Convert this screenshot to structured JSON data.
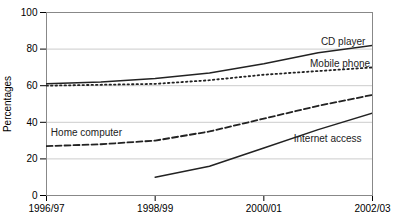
{
  "chart_data": {
    "type": "line",
    "ylabel": "Percentages",
    "x": [
      0,
      1,
      2,
      3,
      4,
      5,
      6
    ],
    "xlim": [
      0,
      6
    ],
    "xticks": [
      {
        "value": 0,
        "label": "1996/97"
      },
      {
        "value": 2,
        "label": "1998/99"
      },
      {
        "value": 4,
        "label": "2000/01"
      },
      {
        "value": 6,
        "label": "2002/03"
      }
    ],
    "ylim": [
      0,
      100
    ],
    "yticks": [
      0,
      20,
      40,
      60,
      80,
      100
    ],
    "grid": true,
    "series": [
      {
        "name": "CD player",
        "color": "#222222",
        "line_style": "solid",
        "values": [
          61,
          62,
          64,
          67,
          72,
          78,
          82
        ]
      },
      {
        "name": "Mobile phone",
        "color": "#222222",
        "line_style": "dotted",
        "values": [
          60,
          60.5,
          61,
          63,
          66,
          68,
          70
        ]
      },
      {
        "name": "Home computer",
        "color": "#222222",
        "line_style": "dashed",
        "values": [
          27,
          28,
          30,
          35,
          42,
          49,
          55
        ]
      },
      {
        "name": "Internet access",
        "color": "#222222",
        "line_style": "solid",
        "values": [
          null,
          null,
          10,
          16,
          26,
          36,
          45
        ]
      }
    ],
    "annotations": [
      {
        "text": "CD player",
        "x": 5.05,
        "y": 84
      },
      {
        "text": "Mobile phone",
        "x": 4.85,
        "y": 72
      },
      {
        "text": "Internet access",
        "x": 4.55,
        "y": 31
      },
      {
        "text": "Home computer",
        "x": 0.08,
        "y": 34
      }
    ]
  }
}
